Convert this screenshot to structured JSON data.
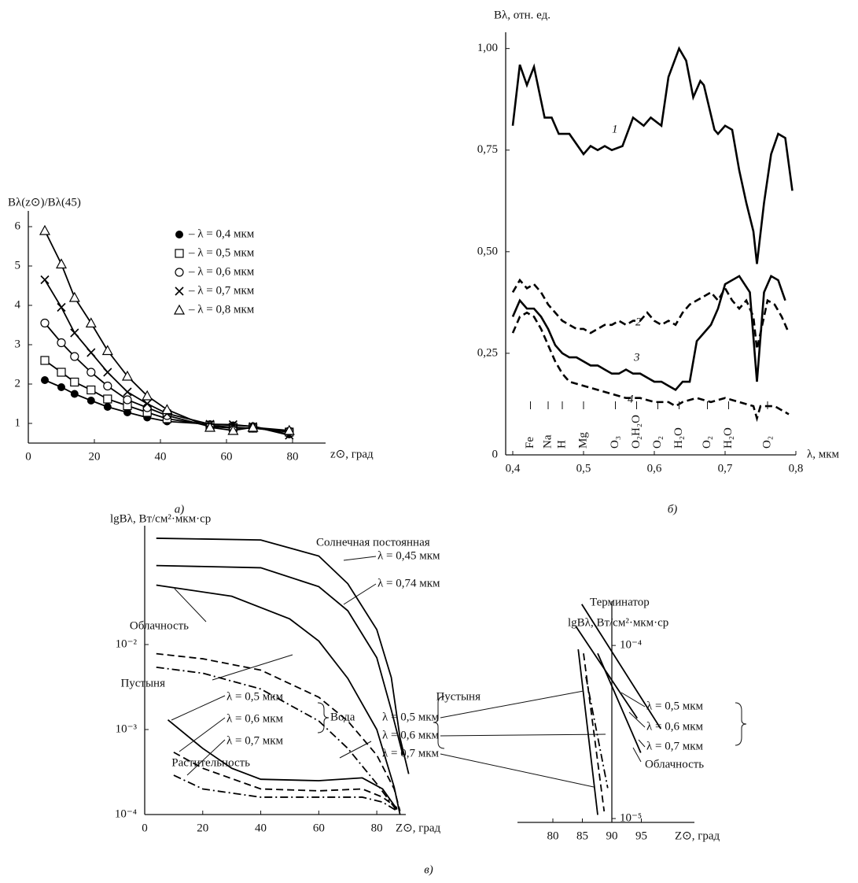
{
  "chart_data": [
    {
      "type": "scatter",
      "caption": "а)",
      "y_label": "Bλ(z⊙)/Bλ(45)",
      "x_label": "z⊙, град",
      "xlim": [
        0,
        90
      ],
      "ylim": [
        0.5,
        6.4
      ],
      "xticks": [
        0,
        20,
        40,
        60,
        80
      ],
      "yticks": [
        1,
        2,
        3,
        4,
        5,
        6
      ],
      "legend": "upper right",
      "x": [
        5,
        10,
        14,
        19,
        24,
        30,
        36,
        42,
        55,
        62,
        68,
        79
      ],
      "series": [
        {
          "name": "– λ = 0,4 мкм",
          "marker": "filled-circle",
          "color": "#000000",
          "values": [
            2.1,
            1.92,
            1.75,
            1.58,
            1.42,
            1.28,
            1.15,
            1.05,
            0.98,
            0.95,
            0.93,
            0.72
          ]
        },
        {
          "name": "– λ = 0,5 мкм",
          "marker": "square",
          "color": "#000000",
          "values": [
            2.6,
            2.3,
            2.05,
            1.85,
            1.62,
            1.45,
            1.28,
            1.12,
            0.95,
            0.9,
            0.88,
            0.78
          ]
        },
        {
          "name": "– λ = 0,6 мкм",
          "marker": "circle",
          "color": "#000000",
          "values": [
            3.55,
            3.05,
            2.7,
            2.3,
            1.95,
            1.6,
            1.4,
            1.2,
            0.92,
            0.88,
            0.88,
            0.8
          ]
        },
        {
          "name": "– λ = 0,7 мкм",
          "marker": "cross",
          "color": "#000000",
          "values": [
            4.65,
            3.95,
            3.3,
            2.8,
            2.3,
            1.8,
            1.5,
            1.25,
            0.98,
            0.97,
            0.92,
            0.7
          ]
        },
        {
          "name": "– λ = 0,8 мкм",
          "marker": "triangle",
          "color": "#000000",
          "values": [
            5.9,
            5.05,
            4.2,
            3.55,
            2.85,
            2.2,
            1.7,
            1.35,
            0.9,
            0.82,
            0.9,
            0.82
          ]
        }
      ]
    },
    {
      "type": "line",
      "caption": "б)",
      "y_label": "Bλ, отн. ед.",
      "x_label": "λ, мкм",
      "xlim": [
        0.39,
        0.8
      ],
      "ylim": [
        0,
        1.04
      ],
      "xticks": [
        {
          "value": 0.4,
          "label": "0,4"
        },
        {
          "value": 0.5,
          "label": "0,5"
        },
        {
          "value": 0.6,
          "label": "0,6"
        },
        {
          "value": 0.7,
          "label": "0,7"
        },
        {
          "value": 0.8,
          "label": "0,8"
        }
      ],
      "yticks": [
        0,
        {
          "value": 0.25,
          "label": "0,25"
        },
        {
          "value": 0.5,
          "label": "0,50"
        },
        {
          "value": 0.75,
          "label": "0,75"
        },
        {
          "value": 1,
          "label": "1,00"
        }
      ],
      "annotations": [
        {
          "text": "Fe",
          "x": 0.425
        },
        {
          "text": "Na",
          "x": 0.45
        },
        {
          "text": "H",
          "x": 0.47
        },
        {
          "text": "Mg",
          "x": 0.5
        },
        {
          "text": "O₃",
          "x": 0.545
        },
        {
          "text": "O₂H₂O",
          "x": 0.575
        },
        {
          "text": "O₂",
          "x": 0.605
        },
        {
          "text": "H₂O",
          "x": 0.635
        },
        {
          "text": "O₂",
          "x": 0.675
        },
        {
          "text": "H₂O",
          "x": 0.705
        },
        {
          "text": "O₂",
          "x": 0.76
        }
      ],
      "series": [
        {
          "name": "1",
          "dash": "solid",
          "color": "#000000",
          "x": [
            0.4,
            0.41,
            0.42,
            0.43,
            0.445,
            0.455,
            0.465,
            0.48,
            0.5,
            0.51,
            0.52,
            0.53,
            0.54,
            0.555,
            0.57,
            0.585,
            0.595,
            0.61,
            0.62,
            0.635,
            0.645,
            0.655,
            0.665,
            0.67,
            0.685,
            0.69,
            0.7,
            0.71,
            0.72,
            0.73,
            0.74,
            0.745,
            0.755,
            0.765,
            0.775,
            0.785,
            0.795
          ],
          "values": [
            0.81,
            0.96,
            0.91,
            0.955,
            0.83,
            0.83,
            0.79,
            0.79,
            0.74,
            0.76,
            0.75,
            0.76,
            0.75,
            0.76,
            0.83,
            0.81,
            0.83,
            0.81,
            0.93,
            1.0,
            0.97,
            0.88,
            0.92,
            0.91,
            0.8,
            0.79,
            0.81,
            0.8,
            0.7,
            0.62,
            0.55,
            0.47,
            0.62,
            0.74,
            0.79,
            0.78,
            0.65
          ]
        },
        {
          "name": "2",
          "dash": "dashed",
          "color": "#000000",
          "x": [
            0.4,
            0.41,
            0.42,
            0.43,
            0.44,
            0.45,
            0.46,
            0.47,
            0.48,
            0.49,
            0.5,
            0.51,
            0.52,
            0.53,
            0.54,
            0.55,
            0.56,
            0.57,
            0.58,
            0.59,
            0.6,
            0.61,
            0.62,
            0.63,
            0.64,
            0.65,
            0.66,
            0.67,
            0.68,
            0.69,
            0.7,
            0.71,
            0.72,
            0.73,
            0.74,
            0.745,
            0.75,
            0.76,
            0.77,
            0.78,
            0.79
          ],
          "values": [
            0.4,
            0.43,
            0.41,
            0.42,
            0.4,
            0.37,
            0.35,
            0.33,
            0.32,
            0.31,
            0.31,
            0.3,
            0.31,
            0.32,
            0.32,
            0.33,
            0.32,
            0.33,
            0.33,
            0.35,
            0.33,
            0.32,
            0.33,
            0.32,
            0.35,
            0.37,
            0.38,
            0.39,
            0.4,
            0.38,
            0.41,
            0.38,
            0.36,
            0.38,
            0.34,
            0.26,
            0.3,
            0.38,
            0.37,
            0.34,
            0.3
          ]
        },
        {
          "name": "3",
          "dash": "solid",
          "color": "#000000",
          "x": [
            0.4,
            0.41,
            0.42,
            0.43,
            0.44,
            0.45,
            0.46,
            0.47,
            0.48,
            0.49,
            0.5,
            0.51,
            0.52,
            0.53,
            0.54,
            0.55,
            0.56,
            0.57,
            0.58,
            0.59,
            0.6,
            0.61,
            0.62,
            0.63,
            0.64,
            0.65,
            0.66,
            0.67,
            0.68,
            0.69,
            0.7,
            0.72,
            0.735,
            0.745,
            0.755,
            0.765,
            0.775,
            0.785
          ],
          "values": [
            0.34,
            0.38,
            0.36,
            0.36,
            0.34,
            0.31,
            0.27,
            0.25,
            0.24,
            0.24,
            0.23,
            0.22,
            0.22,
            0.21,
            0.2,
            0.2,
            0.21,
            0.2,
            0.2,
            0.19,
            0.18,
            0.18,
            0.17,
            0.16,
            0.18,
            0.18,
            0.28,
            0.3,
            0.32,
            0.36,
            0.42,
            0.44,
            0.4,
            0.18,
            0.4,
            0.44,
            0.43,
            0.38
          ]
        },
        {
          "name": "4",
          "dash": "dashed",
          "color": "#000000",
          "x": [
            0.4,
            0.41,
            0.42,
            0.43,
            0.44,
            0.45,
            0.46,
            0.47,
            0.48,
            0.5,
            0.52,
            0.54,
            0.56,
            0.58,
            0.6,
            0.62,
            0.63,
            0.64,
            0.66,
            0.68,
            0.7,
            0.72,
            0.74,
            0.745,
            0.75,
            0.77,
            0.79
          ],
          "values": [
            0.3,
            0.34,
            0.35,
            0.34,
            0.31,
            0.27,
            0.23,
            0.2,
            0.18,
            0.17,
            0.16,
            0.15,
            0.14,
            0.14,
            0.13,
            0.13,
            0.12,
            0.13,
            0.14,
            0.13,
            0.14,
            0.13,
            0.12,
            0.09,
            0.12,
            0.12,
            0.1
          ]
        }
      ]
    },
    {
      "type": "line",
      "caption": "в)",
      "log_scale": true,
      "y_label": "lgBλ, Вт/см²·мкм·ср",
      "x_label": "Z⊙, град",
      "xlim": [
        0,
        90
      ],
      "ylim": [
        0.0001,
        0.25
      ],
      "xticks": [
        0,
        20,
        40,
        60,
        80
      ],
      "yticks": [
        {
          "value": 0.0001,
          "label": "10⁻⁴"
        },
        {
          "value": 0.001,
          "label": "10⁻³"
        },
        {
          "value": 0.01,
          "label": "10⁻²"
        }
      ],
      "annotations": [
        {
          "text": "Солнечная постоянная"
        },
        {
          "text": "Вода"
        }
      ],
      "series": [
        {
          "name": "λ = 0,45 мкм",
          "dash": "solid",
          "color": "#000000",
          "x": [
            4,
            40,
            60,
            70,
            80,
            85,
            88,
            91
          ],
          "values": [
            0.178,
            0.17,
            0.11,
            0.052,
            0.015,
            0.0041,
            0.0008,
            0.0003
          ]
        },
        {
          "name": "λ = 0,74 мкм",
          "dash": "solid",
          "color": "#000000",
          "x": [
            4,
            40,
            60,
            70,
            80,
            85,
            89
          ],
          "values": [
            0.085,
            0.08,
            0.048,
            0.025,
            0.007,
            0.0017,
            0.0005
          ]
        },
        {
          "name": "Облачность",
          "dash": "solid",
          "color": "#000000",
          "x": [
            4,
            30,
            50,
            60,
            70,
            80,
            86,
            88
          ],
          "values": [
            0.05,
            0.037,
            0.02,
            0.011,
            0.004,
            0.001,
            0.00021,
            0.0001
          ]
        },
        {
          "name": "Пустыня",
          "dash": "dashed",
          "color": "#000000",
          "x": [
            4,
            20,
            40,
            60,
            70,
            80,
            86,
            88
          ],
          "values": [
            0.0078,
            0.0068,
            0.005,
            0.0024,
            0.00126,
            0.0005,
            0.0002,
            0.00011
          ]
        },
        {
          "name": "Растительность",
          "dash": "dashdot",
          "color": "#000000",
          "x": [
            4,
            20,
            40,
            60,
            70,
            80,
            87
          ],
          "values": [
            0.0054,
            0.0046,
            0.003,
            0.00126,
            0.0006,
            0.00023,
            0.00011
          ]
        },
        {
          "name": "λ = 0,5 мкм",
          "dash": "solid",
          "color": "#000000",
          "x": [
            8,
            20,
            30,
            40,
            60,
            75,
            82,
            87
          ],
          "values": [
            0.0013,
            0.0006,
            0.00035,
            0.00026,
            0.00025,
            0.00027,
            0.0002,
            0.000115
          ]
        },
        {
          "name": "λ = 0,6 мкм",
          "dash": "dashed",
          "color": "#000000",
          "x": [
            10,
            20,
            40,
            60,
            75,
            82,
            87
          ],
          "values": [
            0.00054,
            0.00035,
            0.0002,
            0.00019,
            0.0002,
            0.00016,
            0.00012
          ]
        },
        {
          "name": "λ = 0,7 мкм",
          "dash": "dashdot",
          "color": "#000000",
          "x": [
            10,
            20,
            40,
            60,
            75,
            82,
            87
          ],
          "values": [
            0.00029,
            0.0002,
            0.00016,
            0.00016,
            0.00016,
            0.00014,
            0.00011
          ]
        }
      ]
    },
    {
      "type": "line",
      "log_scale": true,
      "title": "Терминатор",
      "y_label": "lgBλ, Вт/см²·мкм·ср",
      "x_label": "Z⊙, град",
      "xlim": [
        74,
        104
      ],
      "ylim": [
        9.5e-06,
        0.00018
      ],
      "y_axis_at": 90,
      "xticks": [
        80,
        85,
        90,
        95
      ],
      "yticks": [
        {
          "value": 0.0001,
          "label": "10⁻⁴"
        },
        {
          "value": 1e-05,
          "label": "10⁻⁵"
        }
      ],
      "annotations": [
        {
          "text": "Пустыня"
        },
        {
          "text": "Облачность"
        }
      ],
      "series": [
        {
          "name": "λ = 0,5 мкм",
          "dash": "solid",
          "color": "#000000",
          "x": [
            84.9,
            98.3
          ],
          "values": [
            0.000173,
            3.3e-05
          ]
        },
        {
          "name": "λ = 0,6 мкм",
          "dash": "solid",
          "color": "#000000",
          "x": [
            83.9,
            94.3
          ],
          "values": [
            0.000129,
            3.8e-05
          ]
        },
        {
          "name": "λ = 0,7 мкм",
          "dash": "solid",
          "color": "#000000",
          "x": [
            87.6,
            94.9
          ],
          "values": [
            9e-05,
            2.4e-05
          ]
        },
        {
          "name": "λ = 0,5 мкм",
          "dash": "solid",
          "color": "#000000",
          "x": [
            84.3,
            87.6
          ],
          "values": [
            9.5e-05,
            1.05e-05
          ]
        },
        {
          "name": "λ = 0,6 мкм",
          "dash": "dashed",
          "color": "#000000",
          "x": [
            85.2,
            88.7
          ],
          "values": [
            9e-05,
            1.1e-05
          ]
        },
        {
          "name": "λ = 0,7 мкм",
          "dash": "dashdot",
          "color": "#000000",
          "x": [
            85.6,
            89.3
          ],
          "values": [
            6.6e-05,
            1.5e-05
          ]
        }
      ]
    }
  ]
}
